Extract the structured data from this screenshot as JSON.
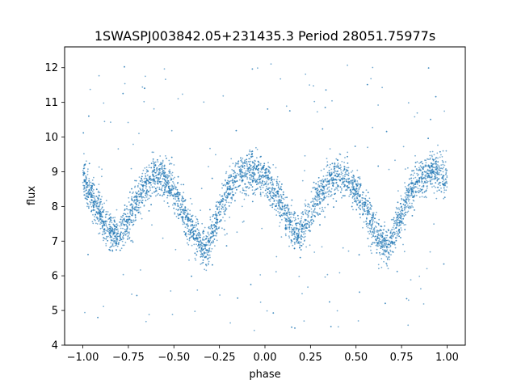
{
  "chart_data": {
    "type": "scatter",
    "title": "1SWASPJ003842.05+231435.3 Period 28051.75977s",
    "xlabel": "phase",
    "ylabel": "flux",
    "xlim": [
      -1.1,
      1.1
    ],
    "ylim": [
      4.0,
      12.6
    ],
    "xticks": [
      -1.0,
      -0.75,
      -0.5,
      -0.25,
      0.0,
      0.25,
      0.5,
      0.75,
      1.0
    ],
    "xtick_labels": [
      "−1.00",
      "−0.75",
      "−0.50",
      "−0.25",
      "0.00",
      "0.25",
      "0.50",
      "0.75",
      "1.00"
    ],
    "yticks": [
      4,
      5,
      6,
      7,
      8,
      9,
      10,
      11,
      12
    ],
    "ytick_labels": [
      "4",
      "5",
      "6",
      "7",
      "8",
      "9",
      "10",
      "11",
      "12"
    ],
    "grid": false,
    "legend": "none",
    "point_color": "#1f77b4",
    "series": [
      {
        "phase": [
          -1.0,
          -0.95,
          -0.9,
          -0.85,
          -0.8,
          -0.75,
          -0.7,
          -0.65,
          -0.6,
          -0.55,
          -0.5,
          -0.45,
          -0.4,
          -0.35,
          -0.32,
          -0.3,
          -0.25,
          -0.2,
          -0.15,
          -0.1,
          -0.05,
          0.0,
          0.05,
          0.1,
          0.15,
          0.18,
          0.2,
          0.25,
          0.3,
          0.35,
          0.4,
          0.45,
          0.5,
          0.55,
          0.6,
          0.65,
          0.68,
          0.7,
          0.75,
          0.8,
          0.85,
          0.9,
          0.95,
          1.0
        ],
        "flux_median": [
          8.8,
          8.3,
          7.7,
          7.3,
          7.2,
          7.6,
          8.2,
          8.7,
          8.9,
          8.8,
          8.4,
          7.9,
          7.3,
          6.9,
          6.8,
          7.0,
          7.8,
          8.5,
          8.9,
          9.0,
          9.0,
          8.8,
          8.4,
          7.9,
          7.4,
          7.2,
          7.3,
          7.8,
          8.4,
          8.8,
          8.9,
          8.8,
          8.4,
          7.9,
          7.3,
          6.9,
          6.8,
          7.1,
          7.8,
          8.4,
          8.8,
          9.0,
          9.0,
          8.8
        ],
        "spread": 0.28,
        "outlier_range": [
          4.4,
          12.2
        ]
      }
    ]
  }
}
